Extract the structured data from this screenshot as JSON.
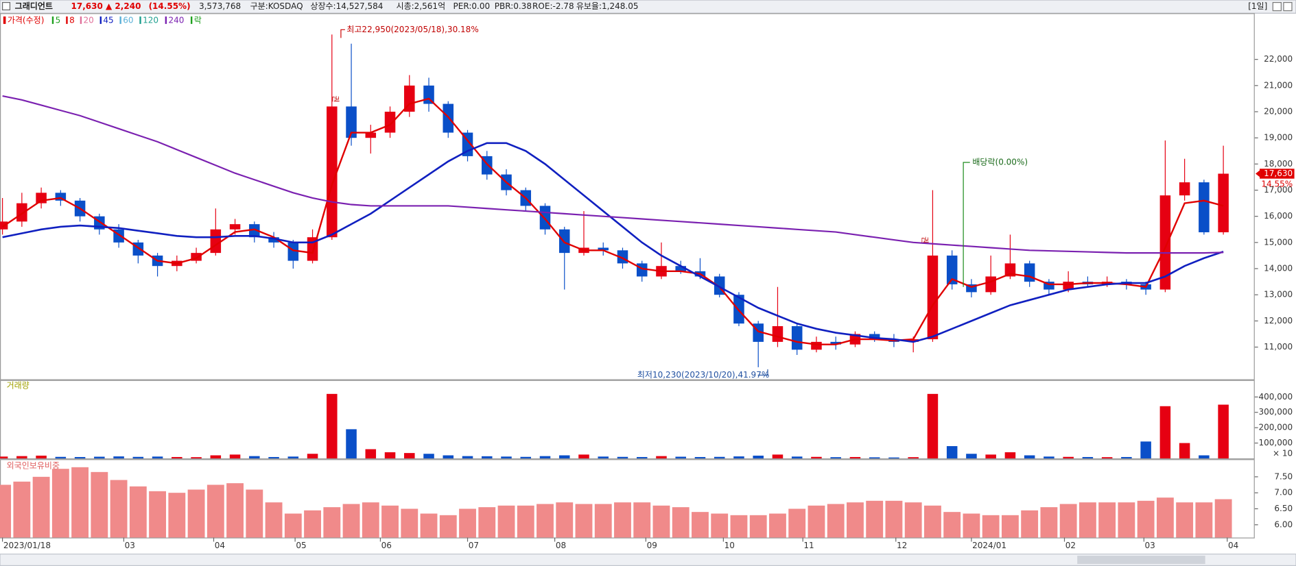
{
  "header": {
    "name": "그래디언트",
    "price": "17,630",
    "change": "▲ 2,240",
    "change_pct": "(14.55%)",
    "volume": "3,573,768",
    "market": "구분:KOSDAQ",
    "shares": "상장수:14,527,584",
    "cap": "시총:2,561억",
    "per": "PER:0.00",
    "pbr": "PBR:0.38",
    "roe": "ROE:-2.78",
    "reserve": "유보율:1,248.05",
    "period": "[1일]"
  },
  "chart_data": [
    {
      "type": "candlestick",
      "legend_title": "가격(수정)",
      "legend": [
        {
          "name": "5",
          "color": "#1fa01f"
        },
        {
          "name": "8",
          "color": "#e00000"
        },
        {
          "name": "20",
          "color": "#e0709a"
        },
        {
          "name": "45",
          "color": "#1020c0"
        },
        {
          "name": "60",
          "color": "#5ab0d8"
        },
        {
          "name": "120",
          "color": "#20a090"
        },
        {
          "name": "240",
          "color": "#7a20b0"
        },
        {
          "name": "락",
          "color": "#1fa01f"
        }
      ],
      "up_color": "#e60012",
      "down_color": "#0a4fc8",
      "xlim": [
        0,
        63
      ],
      "xticks": [
        {
          "value": 0,
          "label": "2023/01/18"
        },
        {
          "value": 6.26,
          "label": "03"
        },
        {
          "value": 10.9,
          "label": "04"
        },
        {
          "value": 15.1,
          "label": "05"
        },
        {
          "value": 19.5,
          "label": "06"
        },
        {
          "value": 24.0,
          "label": "07"
        },
        {
          "value": 28.5,
          "label": "08"
        },
        {
          "value": 33.2,
          "label": "09"
        },
        {
          "value": 37.2,
          "label": "10"
        },
        {
          "value": 41.3,
          "label": "11"
        },
        {
          "value": 46.1,
          "label": "12"
        },
        {
          "value": 50.0,
          "label": "2024/01"
        },
        {
          "value": 54.8,
          "label": "02"
        },
        {
          "value": 58.9,
          "label": "03"
        },
        {
          "value": 63.2,
          "label": "04"
        }
      ],
      "ylim": [
        9770,
        23735
      ],
      "yticks": [
        {
          "value": 11000,
          "label": "11,000"
        },
        {
          "value": 12000,
          "label": "12,000"
        },
        {
          "value": 13000,
          "label": "13,000"
        },
        {
          "value": 14000,
          "label": "14,000"
        },
        {
          "value": 15000,
          "label": "15,000"
        },
        {
          "value": 16000,
          "label": "16,000"
        },
        {
          "value": 17000,
          "label": "17,000"
        },
        {
          "value": 18000,
          "label": "18,000"
        },
        {
          "value": 19000,
          "label": "19,000"
        },
        {
          "value": 20000,
          "label": "20,000"
        },
        {
          "value": 21000,
          "label": "21,000"
        },
        {
          "value": 22000,
          "label": "22,000"
        }
      ],
      "open": [
        15500,
        15800,
        16500,
        16900,
        16600,
        16000,
        15500,
        15000,
        14500,
        14100,
        14300,
        14600,
        15500,
        15700,
        15200,
        15000,
        14300,
        15200,
        20200,
        19000,
        19200,
        20000,
        21000,
        20300,
        19200,
        18300,
        17600,
        17000,
        16400,
        15500,
        14600,
        14800,
        14700,
        14200,
        13700,
        14100,
        13900,
        13700,
        13000,
        11900,
        11200,
        11800,
        10900,
        11200,
        11100,
        11500,
        11300,
        11200,
        11300,
        14500,
        13400,
        13100,
        13700,
        14200,
        13500,
        13200,
        13500,
        13400,
        13500,
        13400,
        13200,
        16800,
        17300,
        15390
      ],
      "high": [
        16700,
        16900,
        17100,
        17000,
        16700,
        16100,
        15700,
        15100,
        14600,
        14500,
        14800,
        16300,
        15900,
        15800,
        15400,
        15100,
        15500,
        22950,
        22600,
        19500,
        20200,
        21400,
        21300,
        20400,
        19300,
        18500,
        17800,
        17100,
        16500,
        15600,
        16200,
        15000,
        14800,
        14300,
        15000,
        14300,
        14400,
        13800,
        13100,
        12000,
        13300,
        11900,
        11400,
        11400,
        11600,
        11600,
        11500,
        11400,
        17000,
        14700,
        13600,
        14500,
        15300,
        14300,
        13600,
        13900,
        13700,
        13700,
        13600,
        13500,
        18900,
        18200,
        17400,
        18700
      ],
      "low": [
        15300,
        15600,
        16300,
        16400,
        15800,
        15300,
        14800,
        14200,
        13700,
        13900,
        14200,
        14500,
        15300,
        15000,
        14800,
        14000,
        14200,
        15100,
        18700,
        18400,
        19000,
        19800,
        20000,
        19000,
        18100,
        17400,
        16800,
        16200,
        15300,
        13200,
        14500,
        14500,
        14000,
        13500,
        13600,
        13800,
        13600,
        12900,
        11800,
        10230,
        11000,
        10700,
        10800,
        10900,
        11000,
        11200,
        11000,
        10800,
        11200,
        13200,
        12900,
        13000,
        13600,
        13300,
        13000,
        13100,
        13300,
        13300,
        13200,
        13000,
        13100,
        16600,
        15300,
        15300
      ],
      "close": [
        15800,
        16500,
        16900,
        16600,
        16000,
        15500,
        15000,
        14500,
        14100,
        14300,
        14600,
        15500,
        15700,
        15200,
        15000,
        14300,
        15200,
        20200,
        19000,
        19200,
        20000,
        21000,
        20300,
        19200,
        18300,
        17600,
        17000,
        16400,
        15500,
        14600,
        14800,
        14700,
        14200,
        13700,
        14100,
        13900,
        13700,
        13000,
        11900,
        11200,
        11800,
        10900,
        11200,
        11100,
        11500,
        11300,
        11200,
        11300,
        14500,
        13400,
        13100,
        13700,
        14200,
        13500,
        13200,
        13500,
        13400,
        13500,
        13400,
        13200,
        16800,
        17300,
        15390,
        17630
      ],
      "series": [
        {
          "name": "5",
          "color": "#e00000",
          "width": 2,
          "values": [
            15600,
            16100,
            16600,
            16700,
            16300,
            15800,
            15300,
            14800,
            14300,
            14200,
            14400,
            14900,
            15400,
            15500,
            15200,
            14700,
            14600,
            17200,
            19200,
            19200,
            19500,
            20300,
            20500,
            19800,
            18900,
            18000,
            17300,
            16700,
            15900,
            15000,
            14700,
            14700,
            14400,
            14000,
            13900,
            13900,
            13800,
            13300,
            12400,
            11600,
            11400,
            11200,
            11100,
            11100,
            11300,
            11300,
            11250,
            11300,
            12600,
            13600,
            13300,
            13500,
            13800,
            13700,
            13400,
            13400,
            13450,
            13450,
            13400,
            13300,
            14800,
            16500,
            16600,
            16400
          ]
        },
        {
          "name": "45",
          "color": "#1020c0",
          "width": 2.2,
          "values": [
            15200,
            15350,
            15500,
            15600,
            15650,
            15600,
            15550,
            15450,
            15350,
            15250,
            15200,
            15200,
            15250,
            15250,
            15150,
            15000,
            15000,
            15300,
            15700,
            16100,
            16600,
            17100,
            17600,
            18100,
            18500,
            18800,
            18800,
            18500,
            18000,
            17400,
            16800,
            16200,
            15600,
            15000,
            14500,
            14100,
            13700,
            13300,
            12900,
            12500,
            12200,
            11900,
            11700,
            11550,
            11450,
            11350,
            11300,
            11200,
            11400,
            11700,
            12000,
            12300,
            12600,
            12800,
            13000,
            13200,
            13300,
            13400,
            13450,
            13450,
            13700,
            14100,
            14400,
            14650
          ]
        },
        {
          "name": "240",
          "color": "#7a20b0",
          "width": 1.8,
          "values": [
            20600,
            20450,
            20250,
            20050,
            19850,
            19600,
            19350,
            19100,
            18850,
            18550,
            18250,
            17950,
            17650,
            17400,
            17150,
            16900,
            16700,
            16550,
            16450,
            16400,
            16400,
            16400,
            16400,
            16400,
            16350,
            16300,
            16250,
            16200,
            16150,
            16100,
            16050,
            16000,
            15950,
            15900,
            15850,
            15800,
            15750,
            15700,
            15650,
            15600,
            15550,
            15500,
            15450,
            15400,
            15300,
            15200,
            15100,
            15000,
            14950,
            14900,
            14850,
            14800,
            14750,
            14700,
            14680,
            14660,
            14640,
            14620,
            14600,
            14600,
            14600,
            14600,
            14600,
            14620
          ]
        }
      ],
      "current_price": {
        "value": 17630,
        "label": "17,630"
      },
      "current_pct": "14.55%",
      "annotations": {
        "high": "최고22,950(2023/05/18),30.18%",
        "low": "최저10,230(2023/10/20),41.97%",
        "dividend": "배당락(0.00%)",
        "rights": "권"
      }
    },
    {
      "type": "bar",
      "title": "거래량",
      "unit": "× 10",
      "ylim": [
        0,
        510000
      ],
      "yticks": [
        {
          "value": 100000,
          "label": "100,000"
        },
        {
          "value": 200000,
          "label": "200,000"
        },
        {
          "value": 300000,
          "label": "300,000"
        },
        {
          "value": 400000,
          "label": "400,000"
        }
      ],
      "values": [
        12000,
        15000,
        18000,
        10000,
        9000,
        11000,
        13000,
        10000,
        12000,
        9000,
        8000,
        20000,
        25000,
        15000,
        9000,
        12000,
        30000,
        420000,
        190000,
        60000,
        40000,
        35000,
        30000,
        20000,
        15000,
        14000,
        12000,
        10000,
        15000,
        20000,
        25000,
        12000,
        10000,
        9000,
        15000,
        11000,
        9000,
        10000,
        13000,
        18000,
        25000,
        12000,
        10000,
        8000,
        9000,
        7000,
        6000,
        8000,
        420000,
        80000,
        30000,
        25000,
        40000,
        20000,
        12000,
        10000,
        9000,
        8000,
        9000,
        110000,
        340000,
        100000,
        20000,
        350000
      ]
    },
    {
      "type": "bar",
      "title": "외국인보유비중",
      "color": "#f08a8a",
      "ylim": [
        5.6,
        8.05
      ],
      "yticks": [
        {
          "value": 6,
          "label": "6.00"
        },
        {
          "value": 6.5,
          "label": "6.50"
        },
        {
          "value": 7,
          "label": "7.00"
        },
        {
          "value": 7.5,
          "label": "7.50"
        }
      ],
      "values": [
        7.25,
        7.35,
        7.5,
        7.75,
        7.8,
        7.65,
        7.4,
        7.2,
        7.05,
        7.0,
        7.1,
        7.25,
        7.3,
        7.1,
        6.7,
        6.35,
        6.45,
        6.55,
        6.65,
        6.7,
        6.6,
        6.5,
        6.35,
        6.3,
        6.5,
        6.55,
        6.6,
        6.6,
        6.65,
        6.7,
        6.65,
        6.65,
        6.7,
        6.7,
        6.6,
        6.55,
        6.4,
        6.35,
        6.3,
        6.3,
        6.35,
        6.5,
        6.6,
        6.65,
        6.7,
        6.75,
        6.75,
        6.7,
        6.6,
        6.4,
        6.35,
        6.3,
        6.3,
        6.45,
        6.55,
        6.65,
        6.7,
        6.7,
        6.7,
        6.75,
        6.85,
        6.7,
        6.7,
        6.8
      ]
    }
  ]
}
